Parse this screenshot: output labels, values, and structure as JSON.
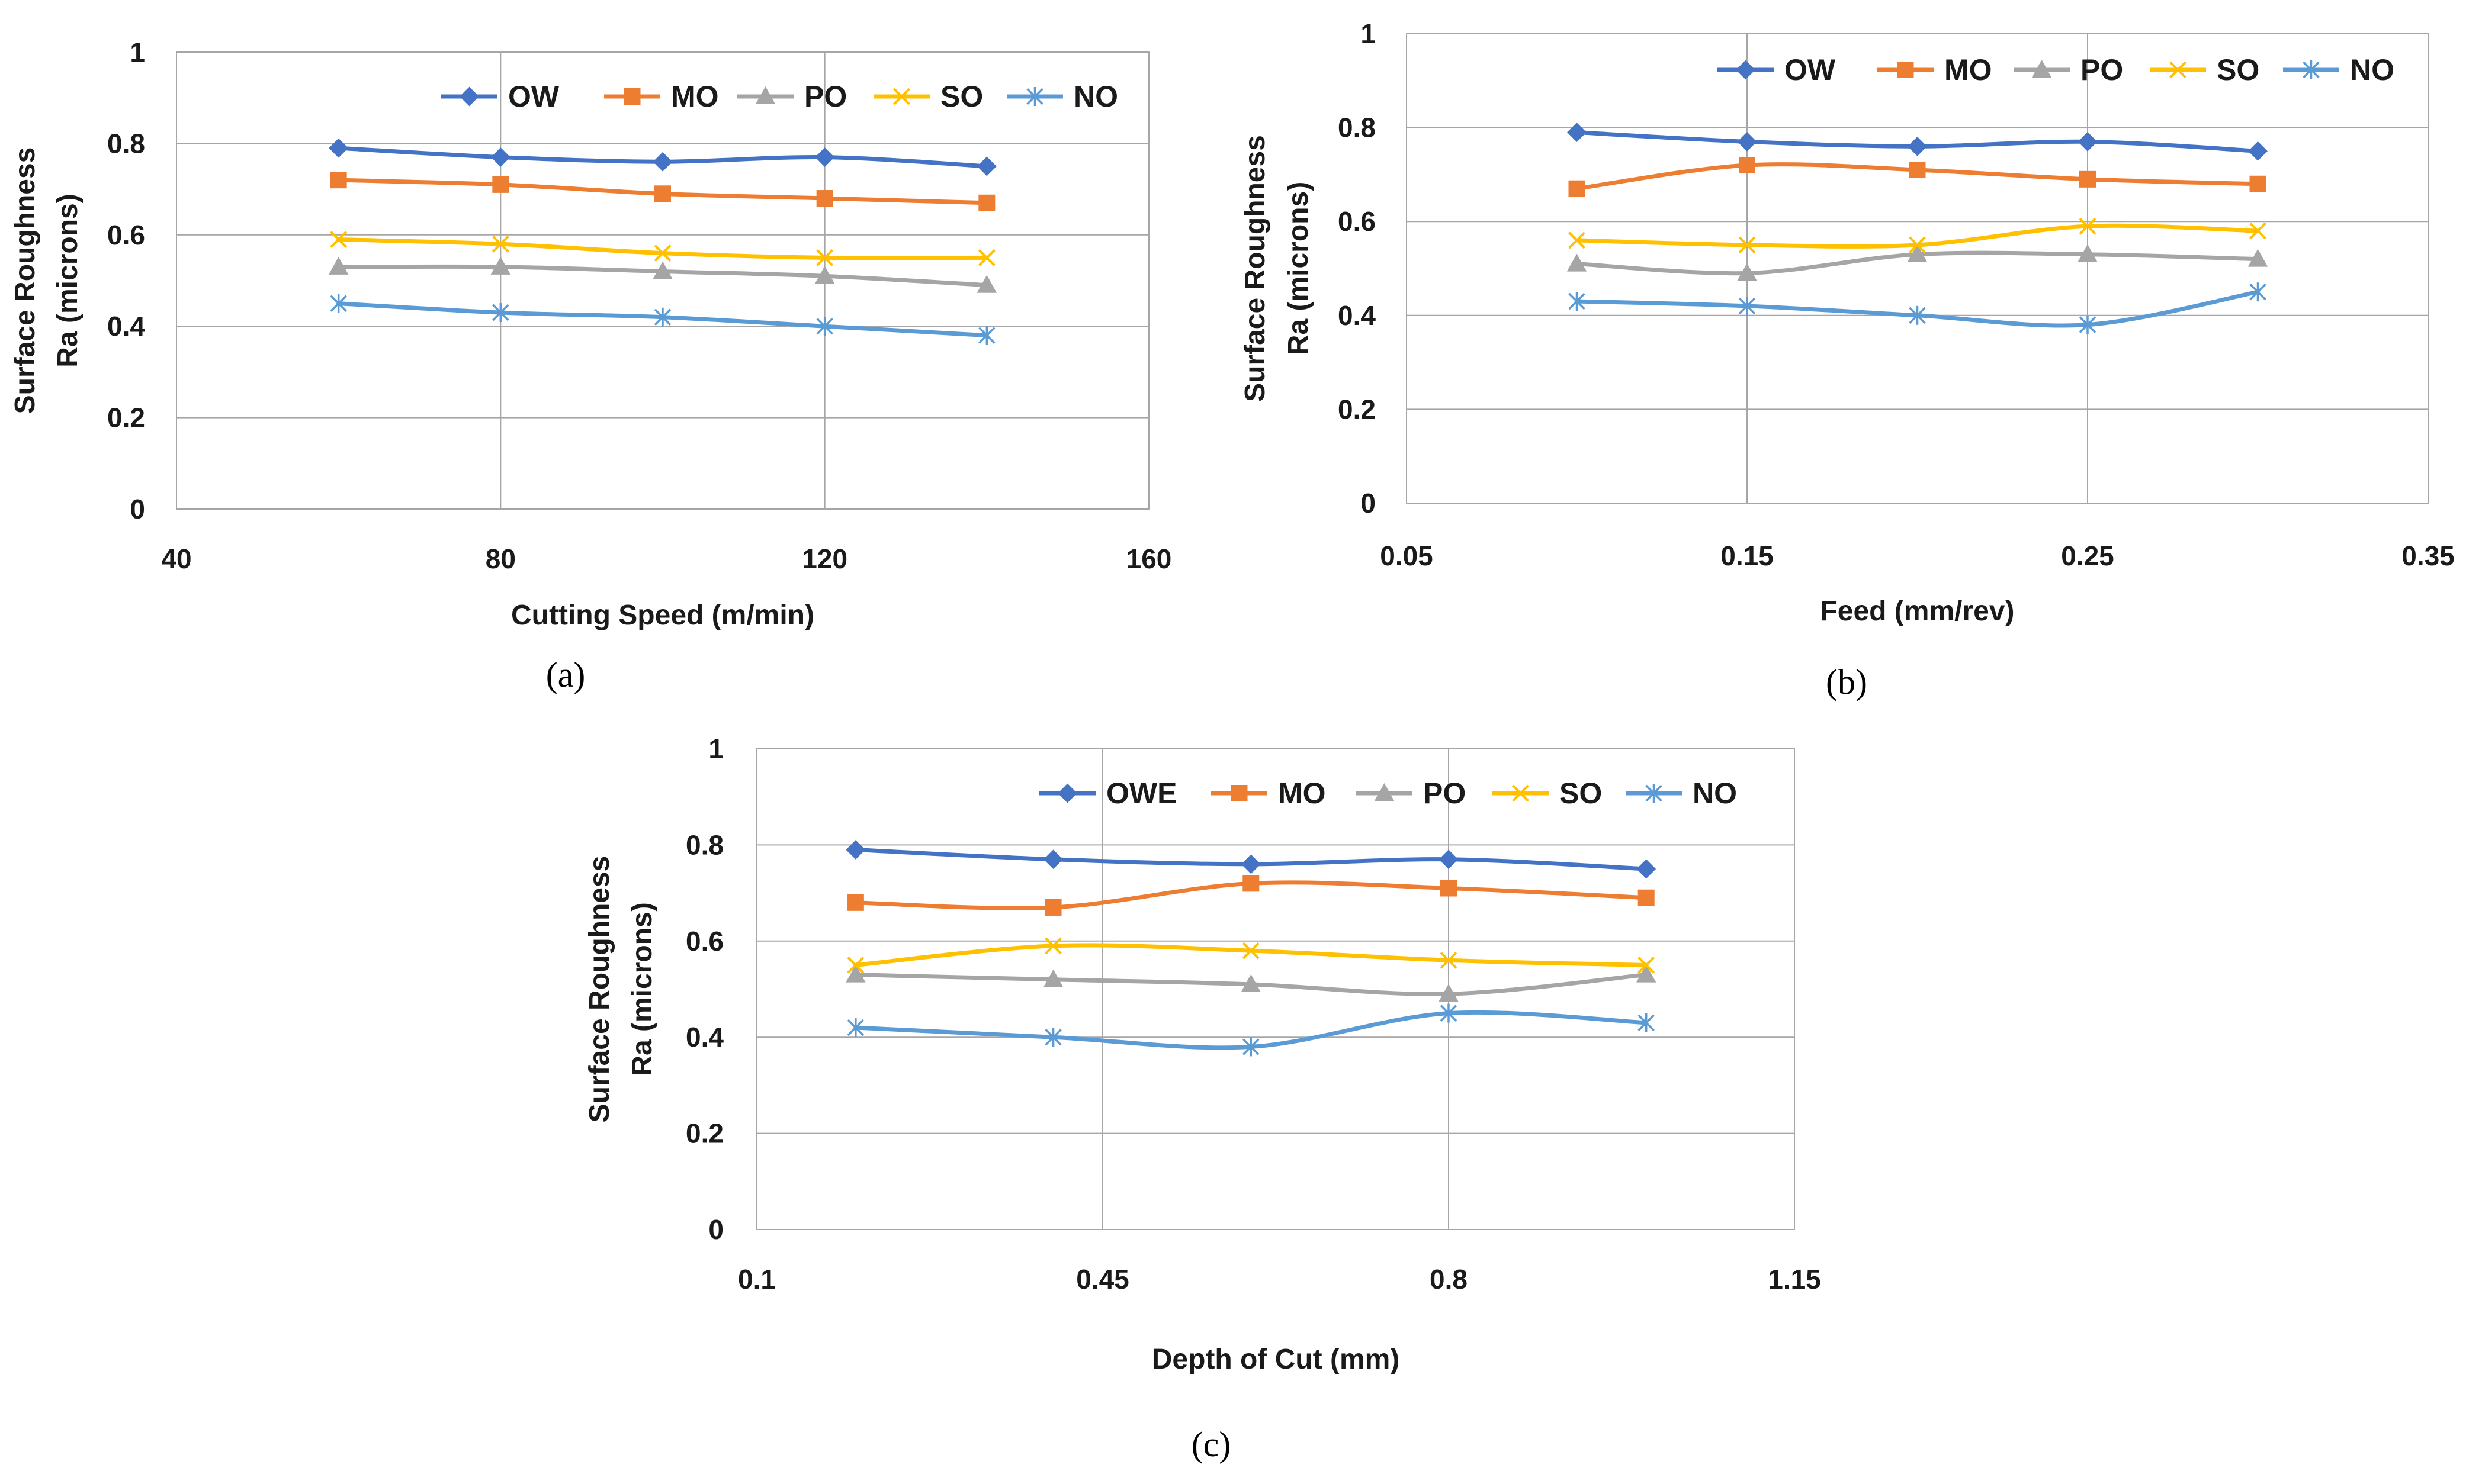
{
  "chart_data": [
    {
      "type": "line",
      "panel": "a",
      "caption": "(a)",
      "title": "",
      "xlabel": "Cutting Speed (m/min)",
      "ylabel_line1": "Surface Roughness",
      "ylabel_line2": "Ra (microns)",
      "xlim": [
        40,
        160
      ],
      "ylim": [
        0,
        1
      ],
      "xticks": [
        40,
        80,
        120,
        160
      ],
      "xtick_labels": [
        "40",
        "80",
        "120",
        "160"
      ],
      "yticks": [
        0,
        0.2,
        0.4,
        0.6,
        0.8,
        1
      ],
      "ytick_labels": [
        "0",
        "0.2",
        "0.4",
        "0.6",
        "0.8",
        "1"
      ],
      "grid": true,
      "legend_position": "top",
      "x": [
        60,
        80,
        100,
        120,
        140
      ],
      "series": [
        {
          "name": "OW",
          "color": "#4472C4",
          "marker": "diamond",
          "values": [
            0.79,
            0.77,
            0.76,
            0.77,
            0.75
          ]
        },
        {
          "name": "MO",
          "color": "#ED7D31",
          "marker": "square",
          "values": [
            0.72,
            0.71,
            0.69,
            0.68,
            0.67
          ]
        },
        {
          "name": "PO",
          "color": "#A5A5A5",
          "marker": "triangle",
          "values": [
            0.53,
            0.53,
            0.52,
            0.51,
            0.49
          ]
        },
        {
          "name": "SO",
          "color": "#FFC000",
          "marker": "x",
          "values": [
            0.59,
            0.58,
            0.56,
            0.55,
            0.55
          ]
        },
        {
          "name": "NO",
          "color": "#5B9BD5",
          "marker": "asterisk",
          "values": [
            0.45,
            0.43,
            0.42,
            0.4,
            0.38
          ]
        }
      ]
    },
    {
      "type": "line",
      "panel": "b",
      "caption": "(b)",
      "title": "",
      "xlabel": "Feed (mm/rev)",
      "ylabel_line1": "Surface Roughness",
      "ylabel_line2": "Ra (microns)",
      "xlim": [
        0.05,
        0.35
      ],
      "ylim": [
        0,
        1
      ],
      "xticks": [
        0.05,
        0.15,
        0.25,
        0.35
      ],
      "xtick_labels": [
        "0.05",
        "0.15",
        "0.25",
        "0.35"
      ],
      "yticks": [
        0,
        0.2,
        0.4,
        0.6,
        0.8,
        1
      ],
      "ytick_labels": [
        "0",
        "0.2",
        "0.4",
        "0.6",
        "0.8",
        "1"
      ],
      "grid": true,
      "legend_position": "top",
      "x": [
        0.1,
        0.15,
        0.2,
        0.25,
        0.3
      ],
      "series": [
        {
          "name": "OW",
          "color": "#4472C4",
          "marker": "diamond",
          "values": [
            0.79,
            0.77,
            0.76,
            0.77,
            0.75
          ]
        },
        {
          "name": "MO",
          "color": "#ED7D31",
          "marker": "square",
          "values": [
            0.67,
            0.72,
            0.71,
            0.69,
            0.68
          ]
        },
        {
          "name": "PO",
          "color": "#A5A5A5",
          "marker": "triangle",
          "values": [
            0.51,
            0.49,
            0.53,
            0.53,
            0.52
          ]
        },
        {
          "name": "SO",
          "color": "#FFC000",
          "marker": "x",
          "values": [
            0.56,
            0.55,
            0.55,
            0.59,
            0.58
          ]
        },
        {
          "name": "NO",
          "color": "#5B9BD5",
          "marker": "asterisk",
          "values": [
            0.43,
            0.42,
            0.4,
            0.38,
            0.45
          ]
        }
      ]
    },
    {
      "type": "line",
      "panel": "c",
      "caption": "(c)",
      "title": "",
      "xlabel": "Depth of Cut (mm)",
      "ylabel_line1": "Surface Roughness",
      "ylabel_line2": "Ra (microns)",
      "xlim": [
        0.1,
        1.15
      ],
      "ylim": [
        0,
        1
      ],
      "xticks": [
        0.1,
        0.45,
        0.8,
        1.15
      ],
      "xtick_labels": [
        "0.1",
        "0.45",
        "0.8",
        "1.15"
      ],
      "yticks": [
        0,
        0.2,
        0.4,
        0.6,
        0.8,
        1
      ],
      "ytick_labels": [
        "0",
        "0.2",
        "0.4",
        "0.6",
        "0.8",
        "1"
      ],
      "grid": true,
      "legend_position": "top",
      "x": [
        0.2,
        0.4,
        0.6,
        0.8,
        1.0
      ],
      "series": [
        {
          "name": "OWE",
          "color": "#4472C4",
          "marker": "diamond",
          "values": [
            0.79,
            0.77,
            0.76,
            0.77,
            0.75
          ]
        },
        {
          "name": "MO",
          "color": "#ED7D31",
          "marker": "square",
          "values": [
            0.68,
            0.67,
            0.72,
            0.71,
            0.69
          ]
        },
        {
          "name": "PO",
          "color": "#A5A5A5",
          "marker": "triangle",
          "values": [
            0.53,
            0.52,
            0.51,
            0.49,
            0.53
          ]
        },
        {
          "name": "SO",
          "color": "#FFC000",
          "marker": "x",
          "values": [
            0.55,
            0.59,
            0.58,
            0.56,
            0.55
          ]
        },
        {
          "name": "NO",
          "color": "#5B9BD5",
          "marker": "asterisk",
          "values": [
            0.42,
            0.4,
            0.38,
            0.45,
            0.43
          ]
        }
      ]
    }
  ]
}
